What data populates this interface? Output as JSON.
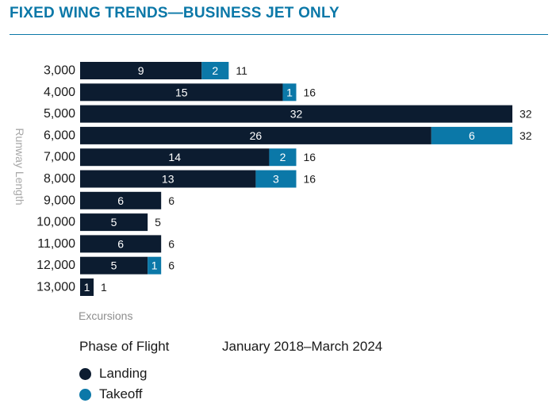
{
  "title": "FIXED WING TRENDS—BUSINESS JET ONLY",
  "legend_title": "Phase of Flight",
  "date_range": "January 2018–March 2024",
  "colors": {
    "landing": "#0c1c30",
    "takeoff": "#0b78a8",
    "accent": "#0b78a8"
  },
  "chart_data": {
    "type": "bar",
    "orientation": "horizontal",
    "stacked": true,
    "categories": [
      "3,000",
      "4,000",
      "5,000",
      "6,000",
      "7,000",
      "8,000",
      "9,000",
      "10,000",
      "11,000",
      "12,000",
      "13,000"
    ],
    "series": [
      {
        "name": "Landing",
        "values": [
          9,
          15,
          32,
          26,
          14,
          13,
          6,
          5,
          6,
          5,
          1
        ]
      },
      {
        "name": "Takeoff",
        "values": [
          2,
          1,
          0,
          6,
          2,
          3,
          0,
          0,
          0,
          1,
          0
        ]
      }
    ],
    "totals": [
      11,
      16,
      32,
      32,
      16,
      16,
      6,
      5,
      6,
      6,
      1
    ],
    "xlabel": "Excursions",
    "ylabel": "Runway Length",
    "xlim": [
      0,
      32
    ],
    "grid": false,
    "legend": "bottom-left"
  }
}
